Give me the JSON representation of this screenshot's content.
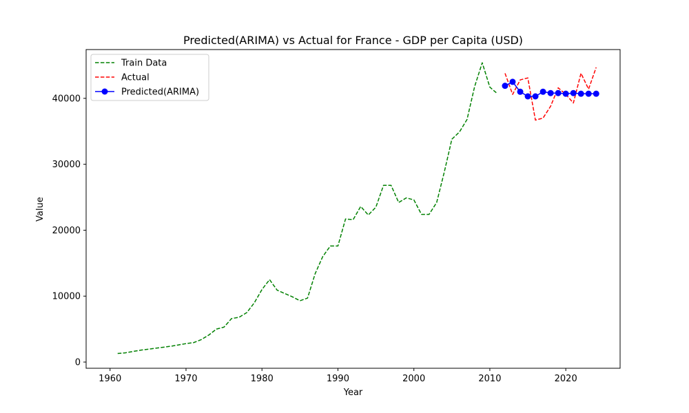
{
  "chart_data": {
    "type": "line",
    "title": "Predicted(ARIMA) vs Actual for France - GDP per Capita (USD)",
    "xlabel": "Year",
    "ylabel": "Value",
    "xlim": [
      1956.85,
      2027.15
    ],
    "ylim": [
      -940,
      47400
    ],
    "xticks": [
      1960,
      1970,
      1980,
      1990,
      2000,
      2010,
      2020
    ],
    "yticks": [
      0,
      10000,
      20000,
      30000,
      40000
    ],
    "legend_position": "upper-left",
    "series": [
      {
        "name": "Train Data",
        "color": "#008000",
        "style": "dashed",
        "marker": "none",
        "x": [
          1961,
          1962,
          1963,
          1964,
          1965,
          1966,
          1967,
          1968,
          1969,
          1970,
          1971,
          1972,
          1973,
          1974,
          1975,
          1976,
          1977,
          1978,
          1979,
          1980,
          1981,
          1982,
          1983,
          1984,
          1985,
          1986,
          1987,
          1988,
          1989,
          1990,
          1991,
          1992,
          1993,
          1994,
          1995,
          1996,
          1997,
          1998,
          1999,
          2000,
          2001,
          2002,
          2003,
          2004,
          2005,
          2006,
          2007,
          2008,
          2009,
          2010,
          2011
        ],
        "y": [
          1300,
          1400,
          1600,
          1800,
          1950,
          2100,
          2250,
          2400,
          2600,
          2800,
          2950,
          3400,
          4100,
          5000,
          5300,
          6600,
          6800,
          7500,
          9000,
          11000,
          12500,
          10900,
          10400,
          9900,
          9300,
          9700,
          13400,
          16000,
          17600,
          17600,
          21700,
          21600,
          23600,
          22300,
          23500,
          26800,
          26800,
          24200,
          24900,
          24600,
          22400,
          22400,
          24200,
          28800,
          33800,
          34900,
          36800,
          41800,
          45400,
          41700,
          40700
        ]
      },
      {
        "name": "Actual",
        "color": "#ff0000",
        "style": "dashed",
        "marker": "none",
        "x": [
          2012,
          2013,
          2014,
          2015,
          2016,
          2017,
          2018,
          2019,
          2020,
          2021,
          2022,
          2023,
          2024
        ],
        "y": [
          43800,
          40600,
          42800,
          43100,
          36700,
          37000,
          38800,
          41600,
          40600,
          39300,
          43800,
          41400,
          44700
        ]
      },
      {
        "name": "Predicted(ARIMA)",
        "color": "#0000ff",
        "style": "solid",
        "marker": "circle",
        "x": [
          2012,
          2013,
          2014,
          2015,
          2016,
          2017,
          2018,
          2019,
          2020,
          2021,
          2022,
          2023,
          2024
        ],
        "y": [
          41900,
          42500,
          41000,
          40300,
          40300,
          41000,
          40800,
          40800,
          40700,
          40800,
          40700,
          40700,
          40700
        ]
      }
    ]
  }
}
